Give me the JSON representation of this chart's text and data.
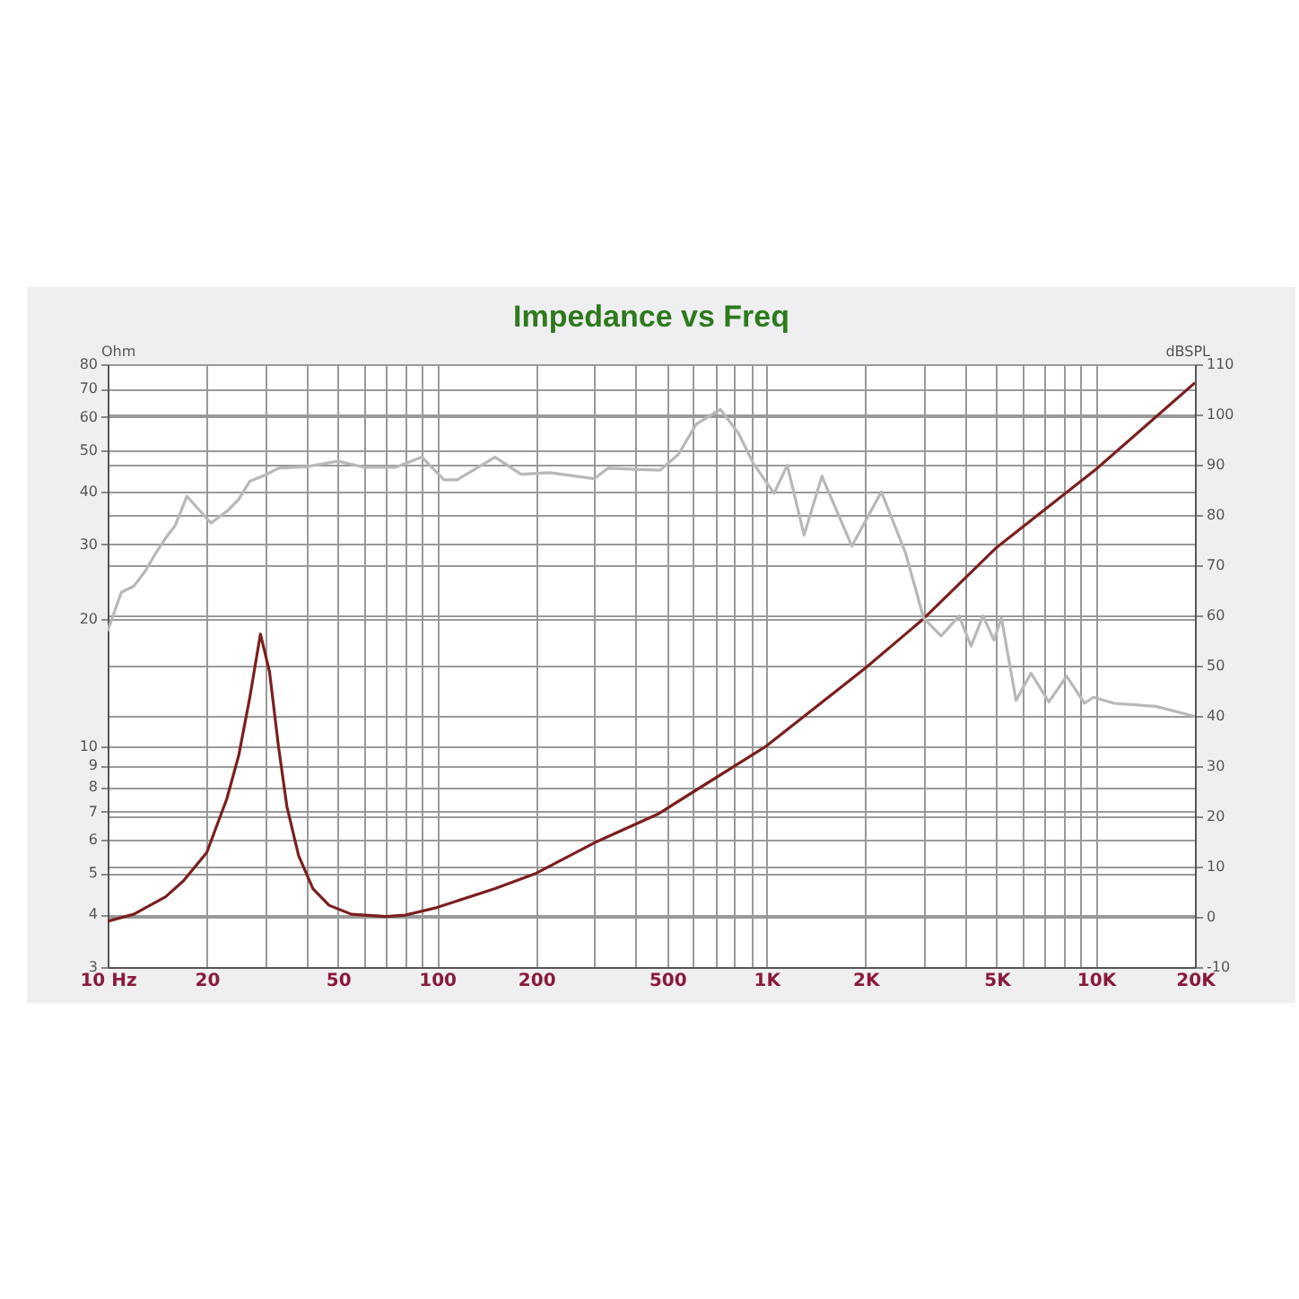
{
  "chart_data": {
    "type": "line",
    "title": "Impedance vs Freq",
    "ylabel": "Ohm",
    "y2label": "dBSPL",
    "log": "xy",
    "grid": true,
    "line_style": "solid",
    "marker": "none",
    "xlim": [
      10,
      20000
    ],
    "xticks": [
      {
        "value": 10,
        "label": "10 Hz"
      },
      20,
      {
        "value": 30,
        "label": null
      },
      {
        "value": 40,
        "label": null
      },
      50,
      {
        "value": 60,
        "label": null
      },
      {
        "value": 70,
        "label": null
      },
      {
        "value": 80,
        "label": null
      },
      {
        "value": 90,
        "label": null
      },
      100,
      200,
      {
        "value": 300,
        "label": null
      },
      {
        "value": 400,
        "label": null
      },
      500,
      {
        "value": 600,
        "label": null
      },
      {
        "value": 700,
        "label": null
      },
      {
        "value": 800,
        "label": null
      },
      {
        "value": 900,
        "label": null
      },
      {
        "value": 1000,
        "label": "1K"
      },
      {
        "value": 2000,
        "label": "2K"
      },
      {
        "value": 3000,
        "label": null
      },
      {
        "value": 4000,
        "label": null
      },
      {
        "value": 5000,
        "label": "5K"
      },
      {
        "value": 6000,
        "label": null
      },
      {
        "value": 7000,
        "label": null
      },
      {
        "value": 8000,
        "label": null
      },
      {
        "value": 9000,
        "label": null
      },
      {
        "value": 10000,
        "label": "10K"
      },
      {
        "value": 20000,
        "label": "20K"
      }
    ],
    "ylim": [
      3,
      80
    ],
    "yticks": [
      3,
      4,
      5,
      6,
      7,
      8,
      9,
      10,
      20,
      30,
      40,
      50,
      60,
      70,
      80
    ],
    "y2lim": [
      -10,
      110
    ],
    "y2ticks": [
      -10,
      0,
      10,
      20,
      30,
      40,
      50,
      60,
      70,
      80,
      90,
      100,
      110
    ],
    "series": [
      {
        "color": "#7a1f1f",
        "x": [
          10,
          12,
          15,
          17,
          20,
          23,
          25,
          27,
          29.1,
          31,
          33,
          35,
          38,
          42,
          47,
          55,
          70,
          80,
          100,
          150,
          200,
          300,
          468,
          1000,
          2000,
          3000,
          5000,
          10000,
          20000
        ],
        "values": [
          3.85,
          4.0,
          4.4,
          4.8,
          5.6,
          7.5,
          9.5,
          13,
          18.4,
          15,
          10,
          7.2,
          5.5,
          4.6,
          4.2,
          4.0,
          3.95,
          3.98,
          4.15,
          4.6,
          5.0,
          5.9,
          6.9,
          10.0,
          15.3,
          20.0,
          29.5,
          45.1,
          72.3
        ]
      },
      {
        "color": "#b8b8b8",
        "axis": "y2",
        "x": [
          10,
          11,
          12,
          13,
          14,
          15,
          16,
          17.4,
          20.6,
          23,
          25,
          27,
          30,
          33,
          40,
          50,
          60,
          75,
          90,
          105,
          115,
          150,
          180,
          220,
          300,
          330,
          400,
          476,
          541,
          613,
          725,
          822,
          912,
          1055,
          1157,
          1301,
          1474,
          1817,
          2234,
          2646,
          3000,
          3390,
          3847,
          4181,
          4546,
          4906,
          5170,
          5727,
          6356,
          7203,
          8160,
          9240,
          9839,
          11370,
          15200,
          20000
        ],
        "values": [
          56.9,
          64.6,
          65.8,
          68.8,
          72.4,
          75.4,
          77.8,
          83.7,
          78.4,
          80.7,
          83.1,
          86.7,
          87.9,
          89.3,
          89.6,
          90.7,
          89.5,
          89.5,
          91.5,
          87.0,
          87.0,
          91.5,
          88.1,
          88.4,
          87.2,
          89.3,
          89.1,
          88.9,
          92.1,
          98.1,
          101,
          96.3,
          90.3,
          84.3,
          89.9,
          76.0,
          87.7,
          73.8,
          84.6,
          72.4,
          59.5,
          55.9,
          59.9,
          53.9,
          59.9,
          55.1,
          59.5,
          43.1,
          48.5,
          42.8,
          47.9,
          42.5,
          43.7,
          42.5,
          41.9,
          39.9
        ]
      }
    ]
  }
}
